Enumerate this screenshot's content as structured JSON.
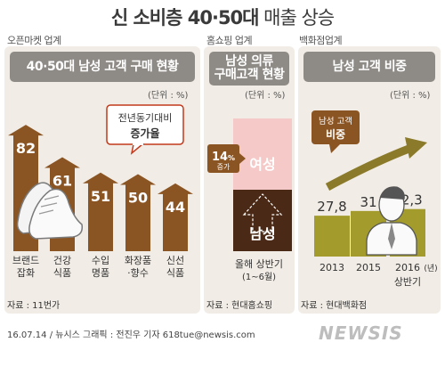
{
  "title_a": "신 소비층 40·50대",
  "title_b": " 매출 상승",
  "colors": {
    "bar_brown": "#8b5523",
    "bar_olive": "#a39c2d",
    "accent_red": "#c23a1c",
    "panel_bg": "#f1ece5",
    "header_gray": "#8e8a85"
  },
  "chart_data": [
    {
      "type": "bar",
      "section_label": "오픈마켓 업계",
      "title": "40·50대 남성 고객 구매 현황",
      "unit": "(단위 : %)",
      "annotation": [
        "전년동기대비",
        "증가율"
      ],
      "categories": [
        [
          "브랜드",
          "잡화"
        ],
        [
          "건강",
          "식품"
        ],
        [
          "수입",
          "명품"
        ],
        [
          "화장품",
          "·향수"
        ],
        [
          "신선",
          "식품"
        ]
      ],
      "values": [
        82,
        61,
        51,
        50,
        44
      ],
      "value_labels": [
        "82",
        "61",
        "51",
        "50",
        "44"
      ],
      "source": "자료 : 11번가"
    },
    {
      "type": "bar",
      "section_label": "홈쇼핑 업계",
      "title": [
        "남성 의류",
        "구매고객 현황"
      ],
      "unit": "(단위 : %)",
      "categories": [
        [
          "올해 상반기",
          "(1~6월)"
        ]
      ],
      "segments": [
        "여성",
        "남성"
      ],
      "annotation_value": "14",
      "annotation_unit": "%",
      "annotation_text": "증가",
      "source": "자료 : 현대홈쇼핑"
    },
    {
      "type": "bar",
      "section_label": "백화점업계",
      "title": "남성 고객 비중",
      "unit": "(단위 : %)",
      "annotation": [
        "남성 고객",
        "비중"
      ],
      "categories": [
        "2013",
        "2015",
        "2016"
      ],
      "category_suffix": "(년)",
      "category_sub": [
        "",
        "",
        "상반기"
      ],
      "values": [
        27.8,
        31,
        32.3
      ],
      "value_labels": [
        "27,8",
        "31",
        "32,3"
      ],
      "source": "자료 : 현대백화점"
    }
  ],
  "footer": "16.07.14 / 뉴시스 그래픽 : 전진우 기자 618tue@newsis.com",
  "logo": "NEWSIS"
}
